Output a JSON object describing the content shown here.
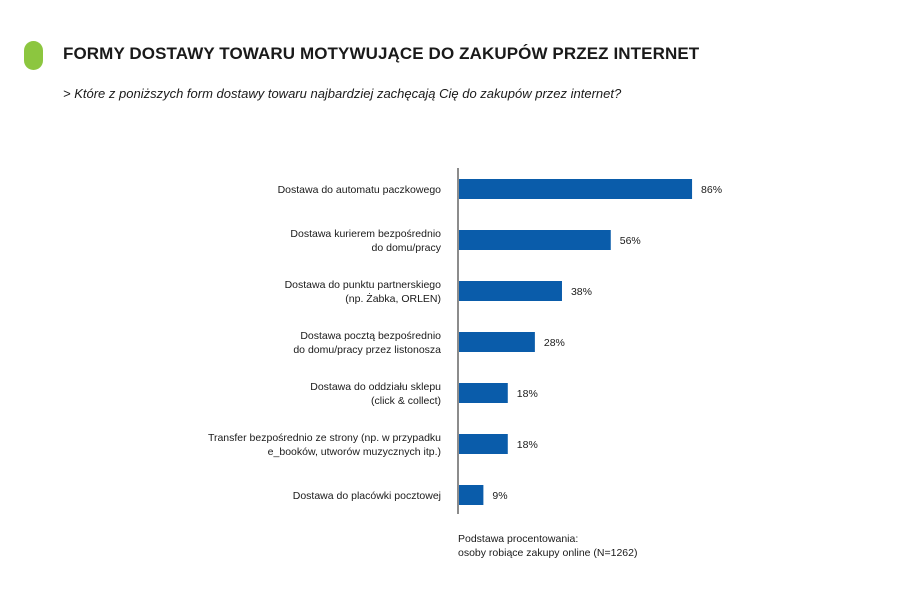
{
  "header": {
    "title": "FORMY DOSTAWY TOWARU MOTYWUJĄCE DO ZAKUPÓW PRZEZ INTERNET",
    "subtitle": "> Które z poniższych form dostawy towaru najbardziej zachęcają Cię do zakupów przez internet?"
  },
  "colors": {
    "accent": "#8cc63f",
    "bar": "#0a5caa",
    "axis": "#1a1a1a"
  },
  "chart_data": {
    "type": "bar",
    "orientation": "horizontal",
    "categories": [
      [
        "Dostawa do automatu paczkowego"
      ],
      [
        "Dostawa kurierem bezpośrednio",
        "do domu/pracy"
      ],
      [
        "Dostawa do punktu partnerskiego",
        "(np. Żabka, ORLEN)"
      ],
      [
        "Dostawa pocztą bezpośrednio",
        "do domu/pracy przez listonosza"
      ],
      [
        "Dostawa do oddziału sklepu",
        "(click & collect)"
      ],
      [
        "Transfer bezpośrednio ze strony (np. w przypadku",
        "e_booków, utworów muzycznych itp.)"
      ],
      [
        "Dostawa do placówki pocztowej"
      ]
    ],
    "values": [
      86,
      56,
      38,
      28,
      18,
      18,
      9
    ],
    "value_labels": [
      "86%",
      "56%",
      "38%",
      "28%",
      "18%",
      "18%",
      "9%"
    ],
    "xlim": [
      0,
      100
    ],
    "grid": false,
    "legend": "none"
  },
  "footnote": {
    "line1": "Podstawa procentowania:",
    "line2": "osoby robiące zakupy online (N=1262)"
  }
}
